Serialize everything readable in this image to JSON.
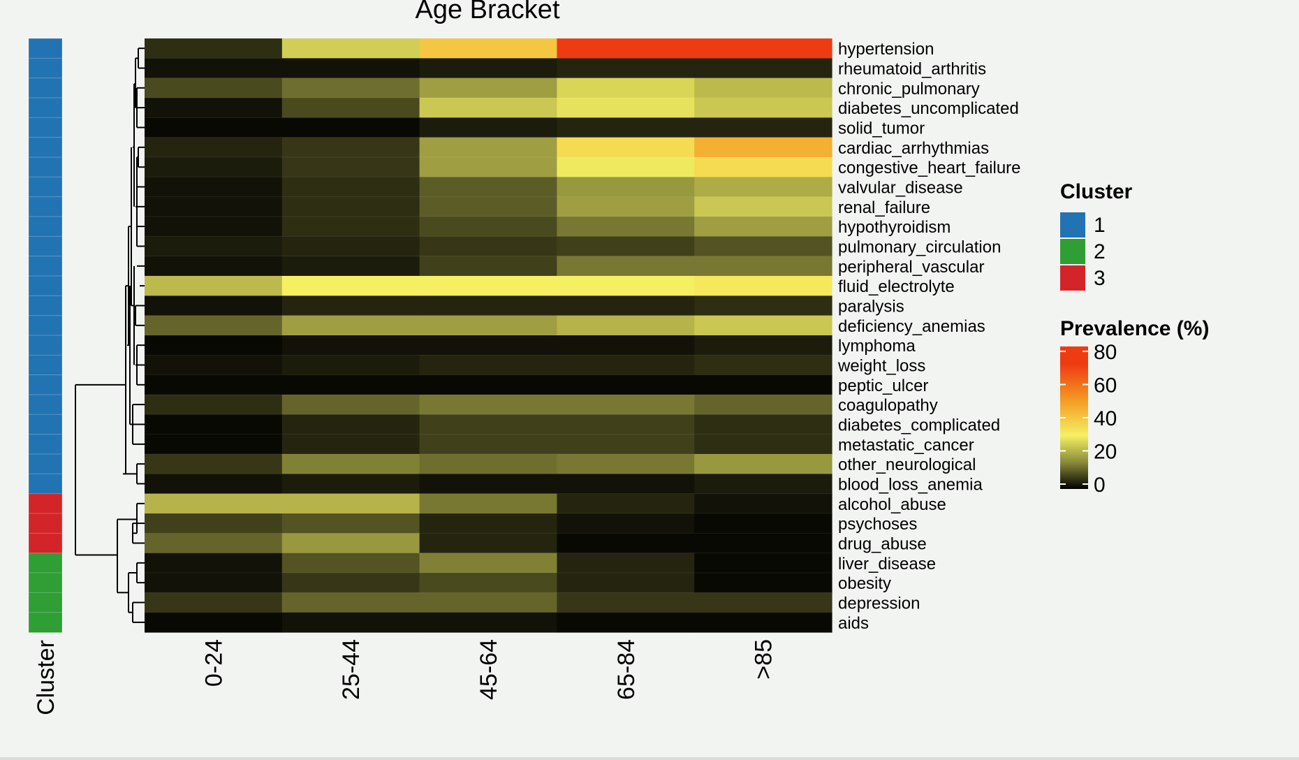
{
  "chart_data": {
    "type": "heatmap",
    "title": "Age Bracket",
    "categories": [
      "0-24",
      "25-44",
      "45-64",
      "65-84",
      ">85"
    ],
    "rows": [
      {
        "label": "hypertension",
        "cluster": 1,
        "values": [
          5,
          25,
          40,
          70,
          70
        ]
      },
      {
        "label": "rheumatoid_arthritis",
        "cluster": 1,
        "values": [
          2,
          2,
          3,
          4,
          4
        ]
      },
      {
        "label": "chronic_pulmonary",
        "cluster": 1,
        "values": [
          8,
          12,
          18,
          26,
          22
        ]
      },
      {
        "label": "diabetes_uncomplicated",
        "cluster": 1,
        "values": [
          2,
          8,
          24,
          28,
          24
        ]
      },
      {
        "label": "solid_tumor",
        "cluster": 1,
        "values": [
          1,
          1,
          3,
          4,
          4
        ]
      },
      {
        "label": "cardiac_arrhythmias",
        "cluster": 1,
        "values": [
          4,
          6,
          18,
          35,
          45
        ]
      },
      {
        "label": "congestive_heart_failure",
        "cluster": 1,
        "values": [
          3,
          6,
          18,
          29,
          35
        ]
      },
      {
        "label": "valvular_disease",
        "cluster": 1,
        "values": [
          2,
          5,
          10,
          17,
          20
        ]
      },
      {
        "label": "renal_failure",
        "cluster": 1,
        "values": [
          2,
          5,
          10,
          18,
          24
        ]
      },
      {
        "label": "hypothyroidism",
        "cluster": 1,
        "values": [
          2,
          5,
          8,
          13,
          18
        ]
      },
      {
        "label": "pulmonary_circulation",
        "cluster": 1,
        "values": [
          3,
          4,
          6,
          7,
          9
        ]
      },
      {
        "label": "peripheral_vascular",
        "cluster": 1,
        "values": [
          2,
          3,
          7,
          13,
          13
        ]
      },
      {
        "label": "fluid_electrolyte",
        "cluster": 1,
        "values": [
          22,
          30,
          30,
          30,
          32
        ]
      },
      {
        "label": "paralysis",
        "cluster": 1,
        "values": [
          2,
          4,
          4,
          4,
          5
        ]
      },
      {
        "label": "deficiency_anemias",
        "cluster": 1,
        "values": [
          11,
          18,
          18,
          21,
          24
        ]
      },
      {
        "label": "lymphoma",
        "cluster": 1,
        "values": [
          1,
          2,
          2,
          2,
          3
        ]
      },
      {
        "label": "weight_loss",
        "cluster": 1,
        "values": [
          2,
          3,
          4,
          4,
          5
        ]
      },
      {
        "label": "peptic_ulcer",
        "cluster": 1,
        "values": [
          1,
          1,
          1,
          1,
          1
        ]
      },
      {
        "label": "coagulopathy",
        "cluster": 1,
        "values": [
          5,
          11,
          13,
          13,
          11
        ]
      },
      {
        "label": "diabetes_complicated",
        "cluster": 1,
        "values": [
          1,
          4,
          7,
          7,
          5
        ]
      },
      {
        "label": "metastatic_cancer",
        "cluster": 1,
        "values": [
          1,
          4,
          7,
          7,
          5
        ]
      },
      {
        "label": "other_neurological",
        "cluster": 1,
        "values": [
          6,
          14,
          12,
          13,
          17
        ]
      },
      {
        "label": "blood_loss_anemia",
        "cluster": 1,
        "values": [
          2,
          3,
          2,
          2,
          3
        ]
      },
      {
        "label": "alcohol_abuse",
        "cluster": 3,
        "values": [
          21,
          21,
          13,
          4,
          2
        ]
      },
      {
        "label": "psychoses",
        "cluster": 3,
        "values": [
          7,
          9,
          4,
          2,
          1
        ]
      },
      {
        "label": "drug_abuse",
        "cluster": 3,
        "values": [
          11,
          17,
          4,
          1,
          1
        ]
      },
      {
        "label": "liver_disease",
        "cluster": 2,
        "values": [
          2,
          9,
          14,
          4,
          1
        ]
      },
      {
        "label": "obesity",
        "cluster": 2,
        "values": [
          2,
          6,
          8,
          4,
          1
        ]
      },
      {
        "label": "depression",
        "cluster": 2,
        "values": [
          6,
          11,
          11,
          6,
          6
        ]
      },
      {
        "label": "aids",
        "cluster": 2,
        "values": [
          1,
          2,
          2,
          1,
          1
        ]
      }
    ],
    "color_scale": {
      "title": "Prevalence (%)",
      "range": [
        0,
        80
      ],
      "ticks": [
        0,
        20,
        40,
        60,
        80
      ],
      "stops": [
        {
          "value": 0,
          "color": "#000000"
        },
        {
          "value": 15,
          "color": "#8a8a3a"
        },
        {
          "value": 30,
          "color": "#f5f062"
        },
        {
          "value": 50,
          "color": "#f39b22"
        },
        {
          "value": 70,
          "color": "#ef3b12"
        },
        {
          "value": 80,
          "color": "#ef3b12"
        }
      ]
    },
    "row_annotation": {
      "label": "Cluster",
      "legend_title": "Cluster",
      "levels": [
        {
          "label": "1",
          "color": "#2273b2"
        },
        {
          "label": "2",
          "color": "#2e9e35"
        },
        {
          "label": "3",
          "color": "#d32529"
        }
      ]
    },
    "dendrogram": "rows",
    "legend_position": "right"
  }
}
